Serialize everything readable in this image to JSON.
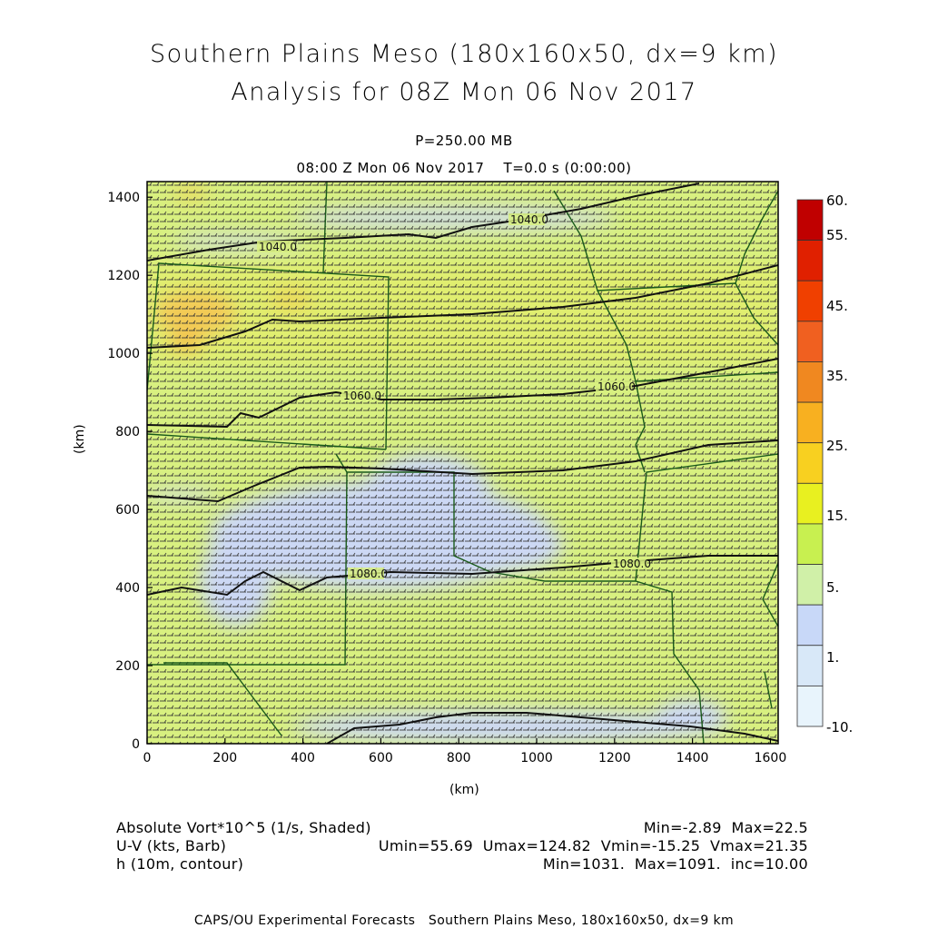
{
  "title": {
    "line1": "Southern Plains Meso (180x160x50, dx=9 km)",
    "line2": "Analysis for 08Z Mon 06 Nov 2017",
    "level": "P=250.00 MB",
    "time": "08:00 Z Mon 06 Nov 2017    T=0.0 s (0:00:00)"
  },
  "axes": {
    "x_label": "(km)",
    "y_label": "(km)",
    "x_ticks": [
      "0",
      "200",
      "400",
      "600",
      "800",
      "1000",
      "1200",
      "1400",
      "1600"
    ],
    "y_ticks": [
      "0",
      "200",
      "400",
      "600",
      "800",
      "1000",
      "1200",
      "1400"
    ],
    "x_range": [
      0,
      1620
    ],
    "y_range": [
      0,
      1440
    ]
  },
  "colorbar": {
    "labels": [
      "60.",
      "55.",
      "45.",
      "35.",
      "25.",
      "15.",
      "5.",
      "1.",
      "-10."
    ],
    "colors": [
      "#c00000",
      "#e02000",
      "#f04000",
      "#f06020",
      "#f08820",
      "#f8b020",
      "#f8d020",
      "#e8f020",
      "#c8f050",
      "#d0f0a8",
      "#c8d8f8",
      "#d8e8f8",
      "#e8f4fc"
    ]
  },
  "contours": {
    "labels": [
      "1040.0",
      "1040.0",
      "1060.0",
      "1060.0",
      "1080.0",
      "1080.0"
    ],
    "values_km": [
      1040,
      1040,
      1060,
      1060,
      1080,
      1080
    ]
  },
  "legend": {
    "field1": "Absolute Vort*10^5 (1/s, Shaded)",
    "field1_stats": "Min=-2.89  Max=22.5",
    "field2": "U-V (kts, Barb)",
    "field2_stats": "Umin=55.69  Umax=124.82  Vmin=-15.25  Vmax=21.35",
    "field3": "h (10m, contour)",
    "field3_stats": "Min=1031.  Max=1091.  inc=10.00"
  },
  "footer": "CAPS/OU Experimental Forecasts   Southern Plains Meso, 180x160x50, dx=9 km",
  "colors": {
    "base_green": "#d8f080",
    "light_yellow_green": "#e4f070",
    "lavender": "#ccd8f4",
    "warm_orange": "#f8c050",
    "border_green": "#1a5a1a"
  }
}
